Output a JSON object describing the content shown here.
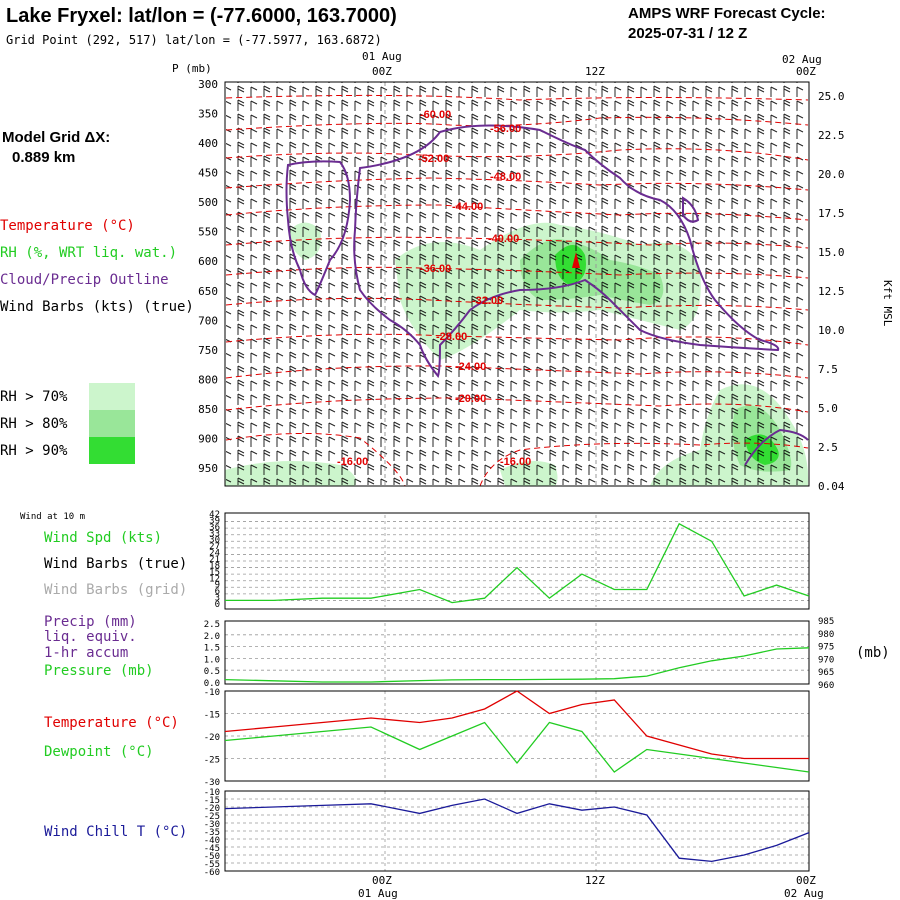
{
  "header": {
    "title": "Lake Fryxel:  lat/lon = (-77.6000, 163.7000)",
    "subtitle": "Grid Point (292, 517) lat/lon = (-77.5977, 163.6872)",
    "cycle_label": "AMPS WRF Forecast Cycle:",
    "cycle_value": "2025-07-31 / 12  Z"
  },
  "model_grid": {
    "label": "Model Grid ΔX:",
    "value": "0.889 km"
  },
  "time_axis": {
    "top_dates": [
      "01 Aug",
      "02 Aug"
    ],
    "bottom_dates": [
      "01 Aug",
      "02 Aug"
    ],
    "hours": [
      "00Z",
      "12Z",
      "00Z"
    ]
  },
  "colors": {
    "temperature": "#e00000",
    "rh": "#22cc22",
    "cloud_outline": "#6a2c91",
    "wind": "#000000",
    "pressure": "#22cc22",
    "dewpoint": "#22cc22",
    "wind_chill": "#1a1a99",
    "grid_winds": "#aaaaaa"
  },
  "legend": {
    "temperature": "Temperature (°C)",
    "rh": "RH (%, WRT liq. wat.)",
    "cloud": "Cloud/Precip Outline",
    "winds": "Wind Barbs (kts) (true)",
    "rh70": "RH > 70%",
    "rh80": "RH > 80%",
    "rh90": "RH > 90%"
  },
  "panel1": {
    "left_axis_label": "P (mb)",
    "right_axis_label": "Kft MSL",
    "pressure_ticks": [
      "300",
      "350",
      "400",
      "450",
      "500",
      "550",
      "600",
      "650",
      "700",
      "750",
      "800",
      "850",
      "900",
      "950"
    ],
    "height_ticks": [
      "25.0",
      "22.5",
      "20.0",
      "17.5",
      "15.0",
      "12.5",
      "10.0",
      "7.5",
      "5.0",
      "2.5",
      "0.04"
    ],
    "isotherm_labels": [
      "-60.00",
      "-56.00",
      "-52.00",
      "-48.00",
      "-44.00",
      "-40.00",
      "-36.00",
      "-32.00",
      "-28.00",
      "-24.00",
      "-20.00",
      "-16.00",
      "-16.00"
    ]
  },
  "panel2": {
    "header": "Wind at 10 m",
    "label_speed": "Wind Spd (kts)",
    "label_barbs_true": "Wind Barbs (true)",
    "label_barbs_grid": "Wind Barbs (grid)",
    "y_ticks": [
      "42",
      "39",
      "36",
      "33",
      "30",
      "27",
      "24",
      "21",
      "18",
      "15",
      "12",
      "9",
      "6",
      "3",
      "0"
    ]
  },
  "panel3": {
    "label_precip": "Precip (mm)",
    "label_liq": "liq. equiv.",
    "label_accum": "1-hr accum",
    "label_pressure": "Pressure (mb)",
    "right_unit": "(mb)",
    "left_ticks": [
      "2.5",
      "2.0",
      "1.5",
      "1.0",
      "0.5",
      "0.0"
    ],
    "right_ticks": [
      "985",
      "980",
      "975",
      "970",
      "965",
      "960"
    ]
  },
  "panel4": {
    "label_temp": "Temperature (°C)",
    "label_dew": "Dewpoint (°C)",
    "y_ticks": [
      "-10",
      "-15",
      "-20",
      "-25",
      "-30"
    ]
  },
  "panel5": {
    "label": "Wind Chill T (°C)",
    "y_ticks": [
      "-10",
      "-15",
      "-20",
      "-25",
      "-30",
      "-35",
      "-40",
      "-45",
      "-50",
      "-55",
      "-60"
    ]
  },
  "chart_data": [
    {
      "type": "line",
      "panel": "wind_speed_10m",
      "x_hours": [
        -12,
        -9,
        -6,
        -3,
        0,
        2,
        4,
        6,
        8,
        10,
        12,
        14,
        16,
        18,
        20,
        22,
        24
      ],
      "series": [
        {
          "name": "Wind Spd (kts)",
          "values": [
            3,
            3,
            4,
            4,
            8,
            2,
            4,
            18,
            4,
            15,
            8,
            8,
            38,
            30,
            5,
            10,
            5
          ]
        }
      ],
      "ylim": [
        0,
        42
      ]
    },
    {
      "type": "line",
      "panel": "precip_pressure",
      "x_hours": [
        -12,
        -9,
        -6,
        -3,
        0,
        2,
        4,
        6,
        8,
        10,
        12,
        14,
        16,
        18,
        20,
        22,
        24
      ],
      "series": [
        {
          "name": "Pressure (mb)",
          "values": [
            961,
            960.5,
            960,
            960,
            960.6,
            960.9,
            961,
            961,
            961.1,
            961.2,
            961.4,
            962.5,
            966,
            969,
            971,
            974,
            974.5
          ]
        },
        {
          "name": "Precip (mm)",
          "values": [
            0,
            0,
            0,
            0,
            0,
            0,
            0,
            0,
            0,
            0,
            0,
            0,
            0,
            0,
            0,
            0,
            0
          ]
        }
      ],
      "ylim_left": [
        0,
        2.5
      ],
      "ylim_right": [
        960,
        985
      ]
    },
    {
      "type": "line",
      "panel": "temperature_dewpoint",
      "x_hours": [
        -12,
        -9,
        -6,
        -3,
        0,
        2,
        4,
        6,
        8,
        10,
        12,
        14,
        16,
        18,
        20,
        22,
        24
      ],
      "series": [
        {
          "name": "Temperature (°C)",
          "values": [
            -19,
            -18,
            -17,
            -16,
            -17,
            -16,
            -14,
            -10,
            -15,
            -13,
            -12,
            -20,
            -22,
            -24,
            -25,
            -25,
            -25
          ]
        },
        {
          "name": "Dewpoint (°C)",
          "values": [
            -21,
            -20,
            -19,
            -18,
            -23,
            -20,
            -17,
            -26,
            -17,
            -19,
            -28,
            -23,
            -24,
            -25,
            -26,
            -27,
            -28
          ]
        }
      ],
      "ylim": [
        -30,
        -10
      ]
    },
    {
      "type": "line",
      "panel": "wind_chill",
      "x_hours": [
        -12,
        -9,
        -6,
        -3,
        0,
        2,
        4,
        6,
        8,
        10,
        12,
        14,
        16,
        18,
        20,
        22,
        24
      ],
      "series": [
        {
          "name": "Wind Chill T (°C)",
          "values": [
            -21,
            -20,
            -19,
            -18,
            -24,
            -19,
            -15,
            -24,
            -18,
            -22,
            -20,
            -25,
            -52,
            -54,
            -50,
            -44,
            -36
          ]
        }
      ],
      "ylim": [
        -60,
        -10
      ]
    }
  ]
}
